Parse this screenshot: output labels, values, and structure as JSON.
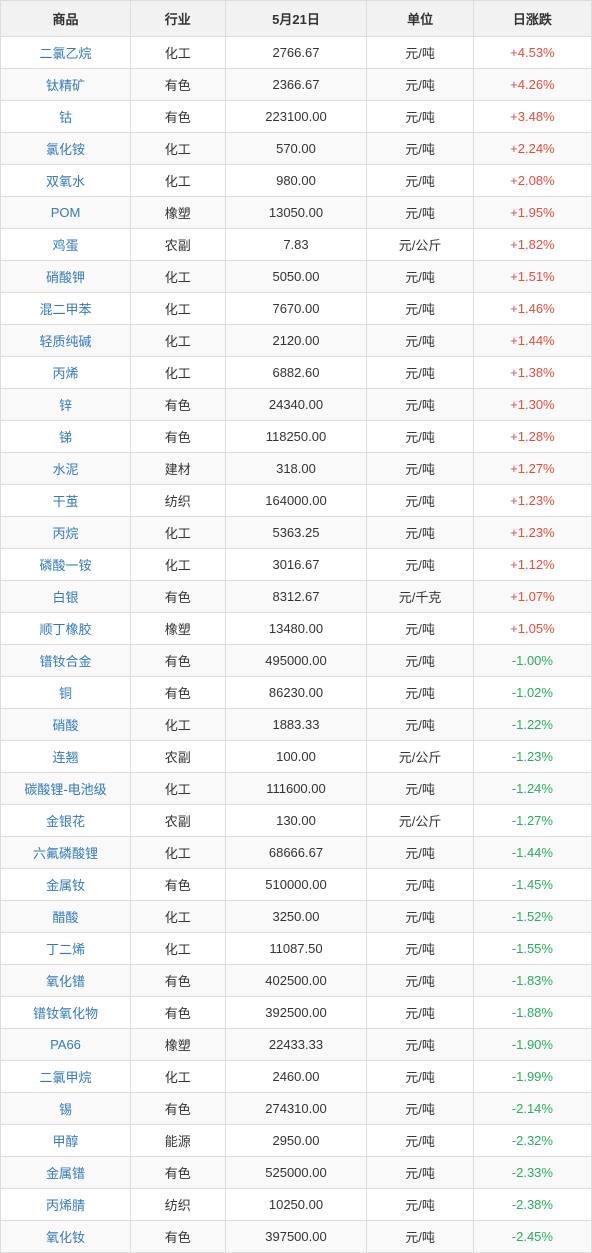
{
  "table": {
    "type": "table",
    "columns": [
      "商品",
      "行业",
      "5月21日",
      "单位",
      "日涨跌"
    ],
    "styling": {
      "header_bg": "#f2f2f2",
      "header_color": "#333333",
      "border_color": "#dddddd",
      "row_even_bg": "#f9f9f9",
      "row_odd_bg": "#ffffff",
      "commodity_color": "#337ab7",
      "positive_color": "#e74c3c",
      "negative_color": "#27ae60",
      "default_text_color": "#333333",
      "font_size_pt": 10,
      "col_widths_pct": [
        22,
        16,
        24,
        18,
        20
      ]
    },
    "rows": [
      {
        "commodity": "二氯乙烷",
        "industry": "化工",
        "price": "2766.67",
        "unit": "元/吨",
        "change": "+4.53%",
        "dir": "pos"
      },
      {
        "commodity": "钛精矿",
        "industry": "有色",
        "price": "2366.67",
        "unit": "元/吨",
        "change": "+4.26%",
        "dir": "pos"
      },
      {
        "commodity": "钴",
        "industry": "有色",
        "price": "223100.00",
        "unit": "元/吨",
        "change": "+3.48%",
        "dir": "pos"
      },
      {
        "commodity": "氯化铵",
        "industry": "化工",
        "price": "570.00",
        "unit": "元/吨",
        "change": "+2.24%",
        "dir": "pos"
      },
      {
        "commodity": "双氧水",
        "industry": "化工",
        "price": "980.00",
        "unit": "元/吨",
        "change": "+2.08%",
        "dir": "pos"
      },
      {
        "commodity": "POM",
        "industry": "橡塑",
        "price": "13050.00",
        "unit": "元/吨",
        "change": "+1.95%",
        "dir": "pos"
      },
      {
        "commodity": "鸡蛋",
        "industry": "农副",
        "price": "7.83",
        "unit": "元/公斤",
        "change": "+1.82%",
        "dir": "pos"
      },
      {
        "commodity": "硝酸钾",
        "industry": "化工",
        "price": "5050.00",
        "unit": "元/吨",
        "change": "+1.51%",
        "dir": "pos"
      },
      {
        "commodity": "混二甲苯",
        "industry": "化工",
        "price": "7670.00",
        "unit": "元/吨",
        "change": "+1.46%",
        "dir": "pos"
      },
      {
        "commodity": "轻质纯碱",
        "industry": "化工",
        "price": "2120.00",
        "unit": "元/吨",
        "change": "+1.44%",
        "dir": "pos"
      },
      {
        "commodity": "丙烯",
        "industry": "化工",
        "price": "6882.60",
        "unit": "元/吨",
        "change": "+1.38%",
        "dir": "pos"
      },
      {
        "commodity": "锌",
        "industry": "有色",
        "price": "24340.00",
        "unit": "元/吨",
        "change": "+1.30%",
        "dir": "pos"
      },
      {
        "commodity": "锑",
        "industry": "有色",
        "price": "118250.00",
        "unit": "元/吨",
        "change": "+1.28%",
        "dir": "pos"
      },
      {
        "commodity": "水泥",
        "industry": "建材",
        "price": "318.00",
        "unit": "元/吨",
        "change": "+1.27%",
        "dir": "pos"
      },
      {
        "commodity": "干茧",
        "industry": "纺织",
        "price": "164000.00",
        "unit": "元/吨",
        "change": "+1.23%",
        "dir": "pos"
      },
      {
        "commodity": "丙烷",
        "industry": "化工",
        "price": "5363.25",
        "unit": "元/吨",
        "change": "+1.23%",
        "dir": "pos"
      },
      {
        "commodity": "磷酸一铵",
        "industry": "化工",
        "price": "3016.67",
        "unit": "元/吨",
        "change": "+1.12%",
        "dir": "pos"
      },
      {
        "commodity": "白银",
        "industry": "有色",
        "price": "8312.67",
        "unit": "元/千克",
        "change": "+1.07%",
        "dir": "pos"
      },
      {
        "commodity": "顺丁橡胶",
        "industry": "橡塑",
        "price": "13480.00",
        "unit": "元/吨",
        "change": "+1.05%",
        "dir": "pos"
      },
      {
        "commodity": "镨钕合金",
        "industry": "有色",
        "price": "495000.00",
        "unit": "元/吨",
        "change": "-1.00%",
        "dir": "neg"
      },
      {
        "commodity": "铜",
        "industry": "有色",
        "price": "86230.00",
        "unit": "元/吨",
        "change": "-1.02%",
        "dir": "neg"
      },
      {
        "commodity": "硝酸",
        "industry": "化工",
        "price": "1883.33",
        "unit": "元/吨",
        "change": "-1.22%",
        "dir": "neg"
      },
      {
        "commodity": "连翘",
        "industry": "农副",
        "price": "100.00",
        "unit": "元/公斤",
        "change": "-1.23%",
        "dir": "neg"
      },
      {
        "commodity": "碳酸锂-电池级",
        "industry": "化工",
        "price": "111600.00",
        "unit": "元/吨",
        "change": "-1.24%",
        "dir": "neg"
      },
      {
        "commodity": "金银花",
        "industry": "农副",
        "price": "130.00",
        "unit": "元/公斤",
        "change": "-1.27%",
        "dir": "neg"
      },
      {
        "commodity": "六氟磷酸锂",
        "industry": "化工",
        "price": "68666.67",
        "unit": "元/吨",
        "change": "-1.44%",
        "dir": "neg"
      },
      {
        "commodity": "金属钕",
        "industry": "有色",
        "price": "510000.00",
        "unit": "元/吨",
        "change": "-1.45%",
        "dir": "neg"
      },
      {
        "commodity": "醋酸",
        "industry": "化工",
        "price": "3250.00",
        "unit": "元/吨",
        "change": "-1.52%",
        "dir": "neg"
      },
      {
        "commodity": "丁二烯",
        "industry": "化工",
        "price": "11087.50",
        "unit": "元/吨",
        "change": "-1.55%",
        "dir": "neg"
      },
      {
        "commodity": "氧化镨",
        "industry": "有色",
        "price": "402500.00",
        "unit": "元/吨",
        "change": "-1.83%",
        "dir": "neg"
      },
      {
        "commodity": "镨钕氧化物",
        "industry": "有色",
        "price": "392500.00",
        "unit": "元/吨",
        "change": "-1.88%",
        "dir": "neg"
      },
      {
        "commodity": "PA66",
        "industry": "橡塑",
        "price": "22433.33",
        "unit": "元/吨",
        "change": "-1.90%",
        "dir": "neg"
      },
      {
        "commodity": "二氯甲烷",
        "industry": "化工",
        "price": "2460.00",
        "unit": "元/吨",
        "change": "-1.99%",
        "dir": "neg"
      },
      {
        "commodity": "锡",
        "industry": "有色",
        "price": "274310.00",
        "unit": "元/吨",
        "change": "-2.14%",
        "dir": "neg"
      },
      {
        "commodity": "甲醇",
        "industry": "能源",
        "price": "2950.00",
        "unit": "元/吨",
        "change": "-2.32%",
        "dir": "neg"
      },
      {
        "commodity": "金属镨",
        "industry": "有色",
        "price": "525000.00",
        "unit": "元/吨",
        "change": "-2.33%",
        "dir": "neg"
      },
      {
        "commodity": "丙烯腈",
        "industry": "纺织",
        "price": "10250.00",
        "unit": "元/吨",
        "change": "-2.38%",
        "dir": "neg"
      },
      {
        "commodity": "氧化钕",
        "industry": "有色",
        "price": "397500.00",
        "unit": "元/吨",
        "change": "-2.45%",
        "dir": "neg"
      }
    ]
  }
}
